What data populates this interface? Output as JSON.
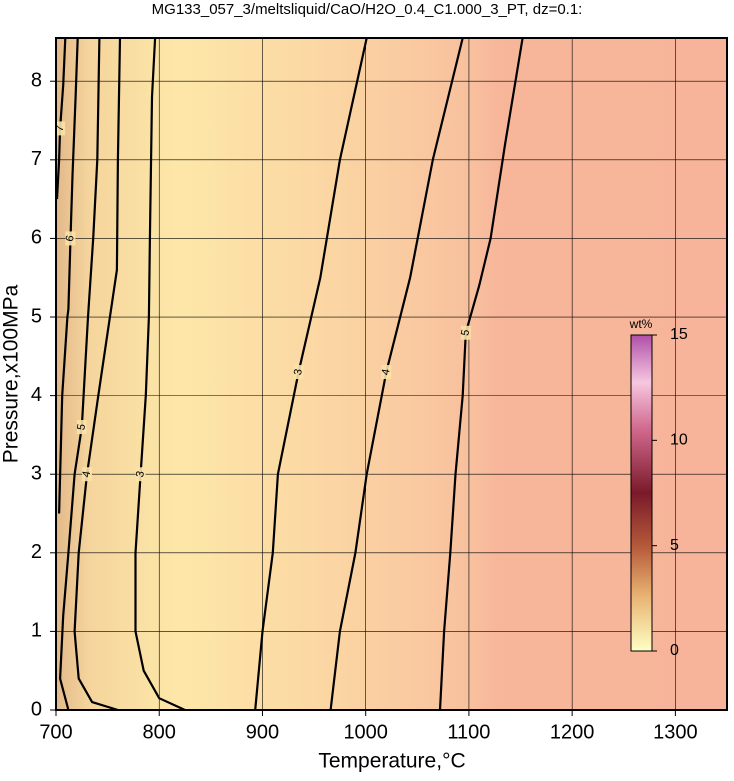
{
  "chart_data": {
    "type": "contour",
    "title": "MG133_057_3/meltsliquid/CaO/H2O_0.4_C1.000_3_PT, dz=0.1:",
    "x_label": "Temperature,°C",
    "y_label": "Pressure,x100MPa",
    "xlim": [
      700,
      1350
    ],
    "ylim": [
      0,
      8.55
    ],
    "xticks": [
      700,
      800,
      900,
      1000,
      1100,
      1200,
      1300
    ],
    "yticks": [
      0,
      1,
      2,
      3,
      4,
      5,
      6,
      7,
      8
    ],
    "grid": true,
    "line_color": "#000000",
    "contours": [
      {
        "level": 3,
        "x": [
          825,
          800,
          785,
          777,
          777,
          782,
          787,
          790,
          791,
          793,
          796
        ],
        "y": [
          0,
          0.15,
          0.5,
          1,
          2,
          3,
          4,
          5,
          6,
          7.8,
          8.55
        ]
      },
      {
        "level": 3,
        "x": [
          893,
          900,
          910,
          915,
          935,
          956,
          975,
          1001
        ],
        "y": [
          0,
          1,
          2,
          3,
          4.3,
          5.5,
          7,
          8.55
        ]
      },
      {
        "level": 4,
        "x": [
          966,
          975,
          990,
          1001,
          1020,
          1043,
          1065,
          1094
        ],
        "y": [
          0,
          1,
          2,
          3,
          4.3,
          5.5,
          7,
          8.55
        ]
      },
      {
        "level": 5,
        "x": [
          1072,
          1076,
          1082,
          1087,
          1094,
          1097,
          1110,
          1121,
          1135,
          1152
        ],
        "y": [
          0,
          1,
          2,
          3,
          4,
          4.8,
          5.4,
          6,
          7.2,
          8.55
        ]
      },
      {
        "level": 4,
        "x": [
          760,
          735,
          722,
          718,
          722,
          730,
          741,
          750,
          759,
          760,
          762
        ],
        "y": [
          0,
          0.1,
          0.4,
          1,
          2,
          3,
          4,
          4.8,
          5.6,
          7,
          8.55
        ]
      },
      {
        "level": 5,
        "x": [
          712,
          704,
          707,
          712,
          718,
          725,
          731,
          736,
          740,
          742
        ],
        "y": [
          0,
          0.4,
          1.2,
          2,
          3,
          3.6,
          5,
          6,
          7,
          8.55
        ]
      },
      {
        "level": 6,
        "x": [
          703,
          706,
          711,
          712,
          714,
          716,
          719,
          721
        ],
        "y": [
          2.5,
          4,
          5,
          5.1,
          6,
          6.8,
          7.8,
          8.55
        ]
      },
      {
        "level": 7,
        "x": [
          701,
          703,
          704,
          707,
          709
        ],
        "y": [
          6.5,
          7,
          7.4,
          7.95,
          8.55
        ]
      }
    ],
    "colorbar": {
      "label": "wt%",
      "lim": [
        0,
        15
      ],
      "ticks": [
        0,
        5,
        10,
        15
      ]
    }
  }
}
